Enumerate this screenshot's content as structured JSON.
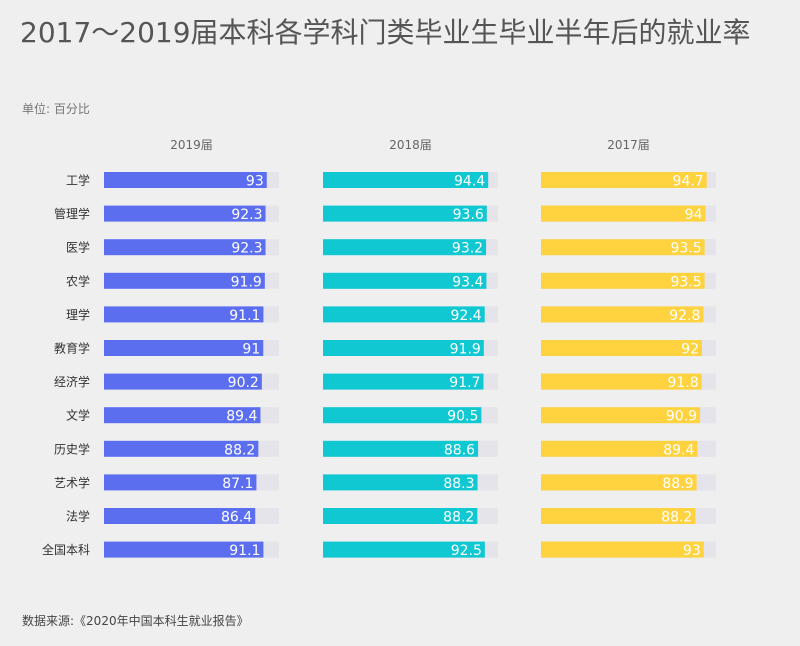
{
  "title": "2017～2019届本科各学科门类毕业生毕业半年后的就业率",
  "unit": "单位: 百分比",
  "source": "数据来源:《2020年中国本科生就业报告》",
  "colors": {
    "series_2019": "#5b6ef0",
    "series_2018": "#10c8d2",
    "series_2017": "#ffd23f",
    "track": "#e4e4ea",
    "value_text": "#ffffff"
  },
  "chart_data": {
    "type": "bar",
    "orientation": "horizontal",
    "layout": "small-multiples",
    "xlim": [
      0,
      100
    ],
    "categories": [
      "工学",
      "管理学",
      "医学",
      "农学",
      "理学",
      "教育学",
      "经济学",
      "文学",
      "历史学",
      "艺术学",
      "法学",
      "全国本科"
    ],
    "series": [
      {
        "name": "2019届",
        "values": [
          93,
          92.3,
          92.3,
          91.9,
          91.1,
          91,
          90.2,
          89.4,
          88.2,
          87.1,
          86.4,
          91.1
        ]
      },
      {
        "name": "2018届",
        "values": [
          94.4,
          93.6,
          93.2,
          93.4,
          92.4,
          91.9,
          91.7,
          90.5,
          88.6,
          88.3,
          88.2,
          92.5
        ]
      },
      {
        "name": "2017届",
        "values": [
          94.7,
          94,
          93.5,
          93.5,
          92.8,
          92,
          91.8,
          90.9,
          89.4,
          88.9,
          88.2,
          93
        ]
      }
    ]
  }
}
